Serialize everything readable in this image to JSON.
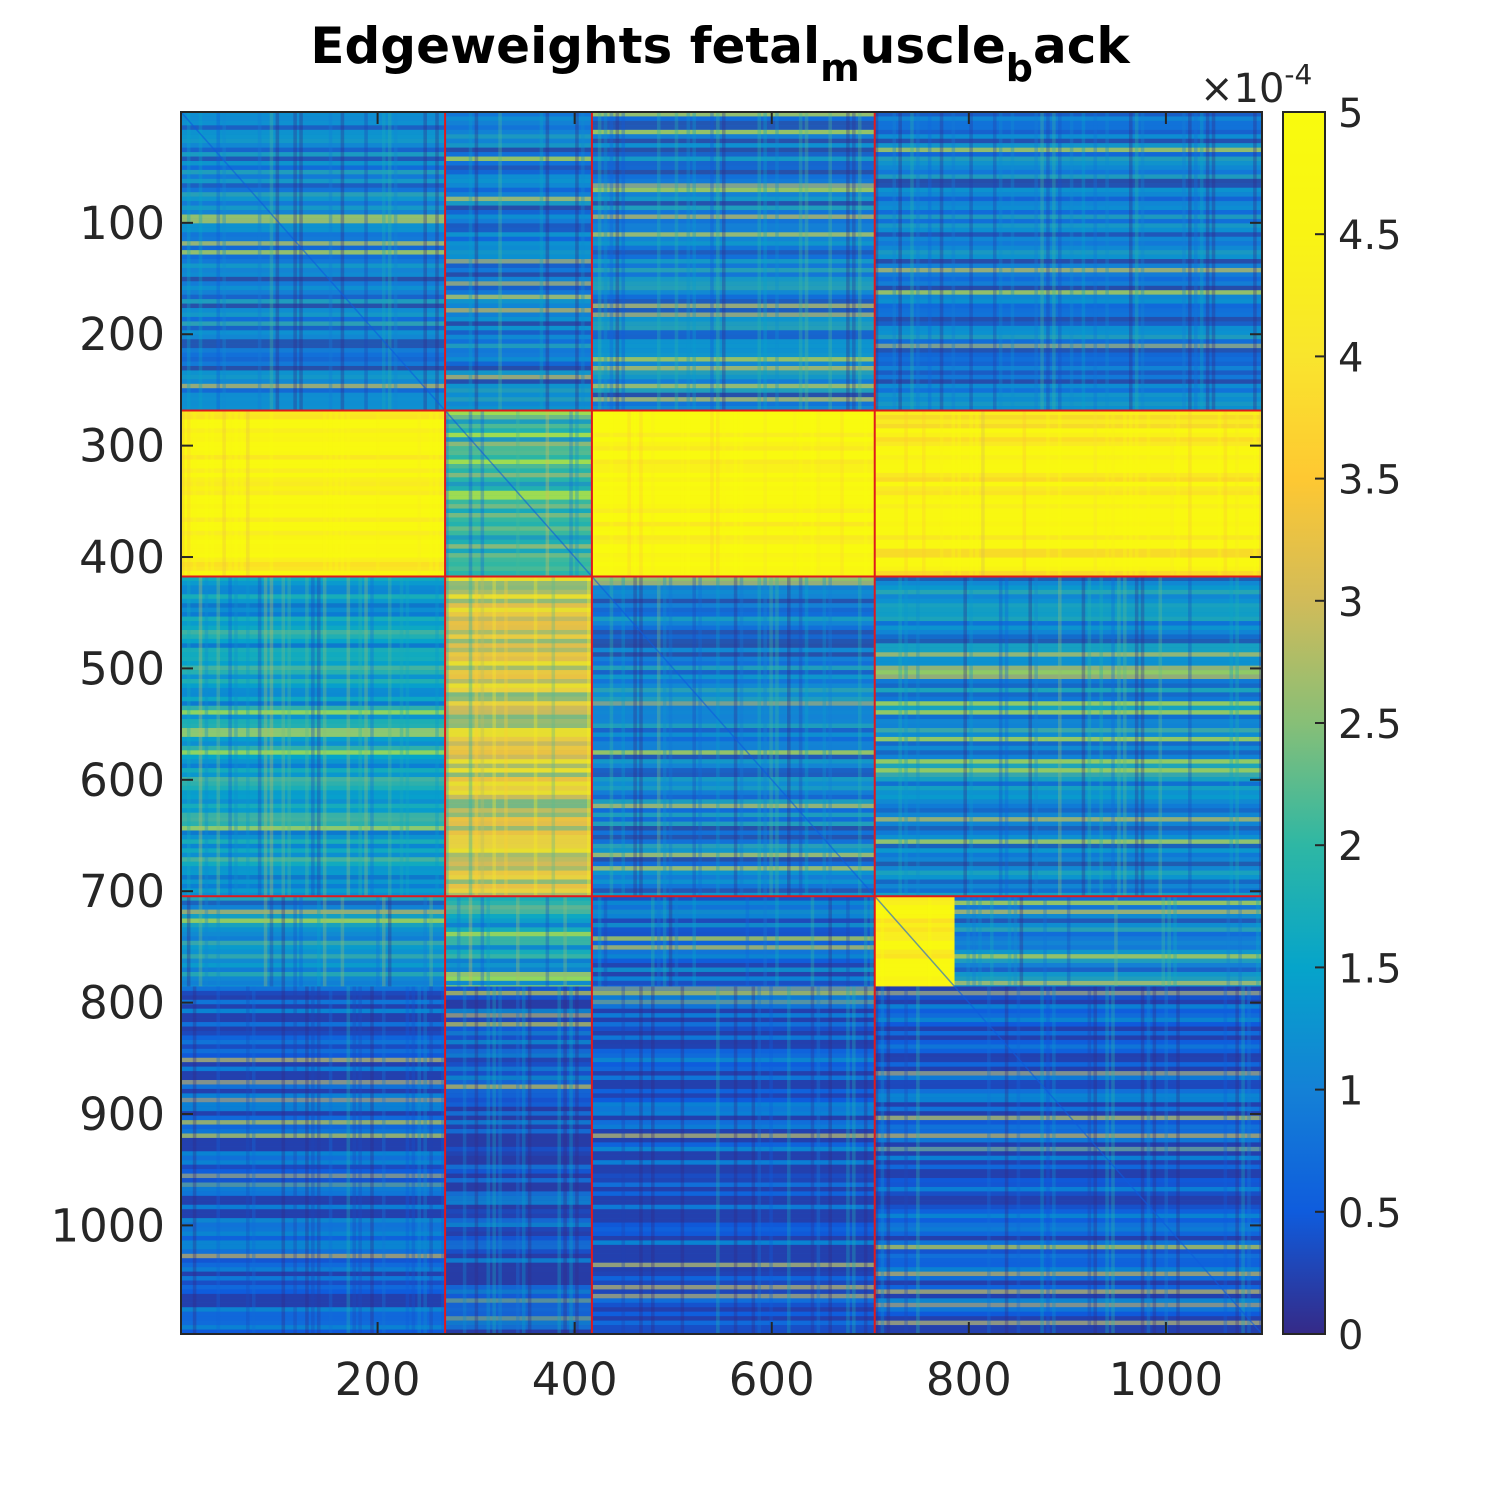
{
  "chart_data": {
    "type": "heatmap",
    "title": {
      "parts": [
        {
          "text": "Edgeweights fetal",
          "sub": false
        },
        {
          "text": "m",
          "sub": true
        },
        {
          "text": "uscle",
          "sub": false
        },
        {
          "text": "b",
          "sub": true
        },
        {
          "text": "ack",
          "sub": false
        }
      ]
    },
    "xlabel": "",
    "ylabel": "",
    "matrix_size": 1097,
    "x_ticks": [
      200,
      400,
      600,
      800,
      1000
    ],
    "x_tick_labels": [
      "200",
      "400",
      "600",
      "800",
      "1000"
    ],
    "y_ticks": [
      100,
      200,
      300,
      400,
      500,
      600,
      700,
      800,
      900,
      1000
    ],
    "y_tick_labels": [
      "100",
      "200",
      "300",
      "400",
      "500",
      "600",
      "700",
      "800",
      "900",
      "1000"
    ],
    "colorbar": {
      "min": 0,
      "max": 5,
      "exponent_label": {
        "base": "×10",
        "exp": "-4"
      },
      "ticks": [
        0,
        0.5,
        1,
        1.5,
        2,
        2.5,
        3,
        3.5,
        4,
        4.5,
        5
      ],
      "tick_labels": [
        "0",
        "0.5",
        "1",
        "1.5",
        "2",
        "2.5",
        "3",
        "3.5",
        "4",
        "4.5",
        "5"
      ],
      "colormap": "parula"
    },
    "cluster_boundaries": [
      268,
      417,
      704
    ],
    "blocks": [
      {
        "rows": [
          0,
          268
        ],
        "cols": [
          0,
          268
        ],
        "level": 1.0
      },
      {
        "rows": [
          0,
          268
        ],
        "cols": [
          268,
          417
        ],
        "level": 0.9
      },
      {
        "rows": [
          0,
          268
        ],
        "cols": [
          417,
          704
        ],
        "level": 1.0
      },
      {
        "rows": [
          0,
          268
        ],
        "cols": [
          704,
          1097
        ],
        "level": 0.9
      },
      {
        "rows": [
          268,
          417
        ],
        "cols": [
          0,
          268
        ],
        "level": 4.6
      },
      {
        "rows": [
          268,
          417
        ],
        "cols": [
          268,
          417
        ],
        "level": 2.0
      },
      {
        "rows": [
          268,
          417
        ],
        "cols": [
          417,
          704
        ],
        "level": 4.8
      },
      {
        "rows": [
          268,
          417
        ],
        "cols": [
          704,
          1097
        ],
        "level": 4.5
      },
      {
        "rows": [
          417,
          704
        ],
        "cols": [
          0,
          268
        ],
        "level": 1.5
      },
      {
        "rows": [
          417,
          704
        ],
        "cols": [
          268,
          417
        ],
        "level": 3.0
      },
      {
        "rows": [
          417,
          704
        ],
        "cols": [
          417,
          704
        ],
        "level": 1.0
      },
      {
        "rows": [
          417,
          704
        ],
        "cols": [
          704,
          1097
        ],
        "level": 1.2
      },
      {
        "rows": [
          704,
          785
        ],
        "cols": [
          0,
          268
        ],
        "level": 1.2
      },
      {
        "rows": [
          704,
          785
        ],
        "cols": [
          268,
          417
        ],
        "level": 1.6
      },
      {
        "rows": [
          704,
          785
        ],
        "cols": [
          417,
          704
        ],
        "level": 0.6
      },
      {
        "rows": [
          704,
          785
        ],
        "cols": [
          704,
          785
        ],
        "level": 4.6
      },
      {
        "rows": [
          704,
          785
        ],
        "cols": [
          785,
          1097
        ],
        "level": 1.0
      },
      {
        "rows": [
          785,
          1097
        ],
        "cols": [
          0,
          268
        ],
        "level": 0.5
      },
      {
        "rows": [
          785,
          1097
        ],
        "cols": [
          268,
          417
        ],
        "level": 0.4
      },
      {
        "rows": [
          785,
          1097
        ],
        "cols": [
          417,
          704
        ],
        "level": 0.5
      },
      {
        "rows": [
          785,
          1097
        ],
        "cols": [
          704,
          1097
        ],
        "level": 0.5
      }
    ],
    "grid": false,
    "legend": "colorbar-right"
  }
}
